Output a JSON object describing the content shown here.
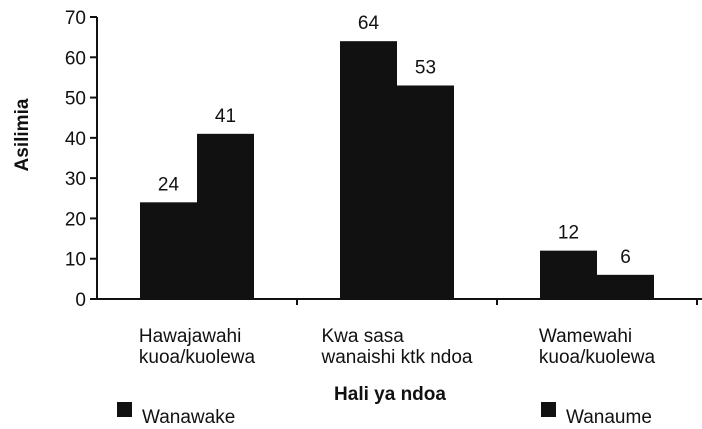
{
  "chart_data": {
    "type": "bar",
    "ylabel": "Asilimia",
    "xlabel": "Hali ya ndoa",
    "categories": [
      [
        "Hawajawahi",
        "kuoa/kuolewa"
      ],
      [
        "Kwa sasa",
        "wanaishi ktk ndoa"
      ],
      [
        "Wamewahi",
        "kuoa/kuolewa"
      ]
    ],
    "series": [
      {
        "name": "Wanawake",
        "color": "#111111",
        "values": [
          24,
          64,
          12
        ]
      },
      {
        "name": "Wanaume",
        "color": "#111111",
        "values": [
          41,
          53,
          6
        ]
      }
    ],
    "ylim": [
      0,
      70
    ],
    "yticks": [
      0,
      10,
      20,
      30,
      40,
      50,
      60,
      70
    ],
    "legend": "bottom"
  }
}
